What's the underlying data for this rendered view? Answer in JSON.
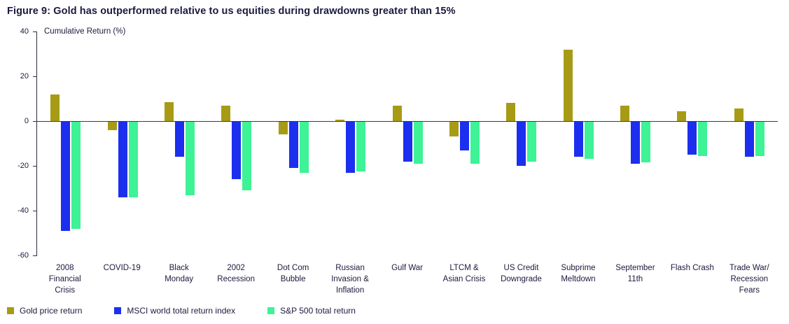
{
  "title": "Figure 9: Gold has outperformed relative to us equities during drawdowns greater than 15%",
  "chart_data": {
    "type": "bar",
    "title": "Figure 9: Gold has outperformed relative to us equities during drawdowns greater than 15%",
    "ylabel": "Cumulative Return (%)",
    "ylim": [
      -60,
      40
    ],
    "yticks": [
      40,
      20,
      0,
      -20,
      -40,
      -60
    ],
    "grid": false,
    "legend_position": "bottom-left",
    "categories": [
      "2008 Financial Crisis",
      "COVID-19",
      "Black Monday",
      "2002 Recession",
      "Dot Com Bubble",
      "Russian Invasion & Inflation",
      "Gulf War",
      "LTCM & Asian Crisis",
      "US Credit Downgrade",
      "Subprime Meltdown",
      "September 11th",
      "Flash Crash",
      "Trade War/ Recession Fears"
    ],
    "series": [
      {
        "name": "Gold price return",
        "color": "#a79b16",
        "values": [
          12,
          -4,
          8.5,
          7,
          -6,
          0.5,
          7,
          -7,
          8,
          32,
          7,
          4.5,
          5.5
        ]
      },
      {
        "name": "MSCI world total return index",
        "color": "#1c2fee",
        "values": [
          -49,
          -34,
          -16,
          -26,
          -21,
          -23,
          -18,
          -13,
          -20,
          -16,
          -19,
          -15,
          -16
        ]
      },
      {
        "name": "S&P 500 total return",
        "color": "#3ef296",
        "values": [
          -48,
          -34,
          -33,
          -31,
          -23,
          -22.5,
          -19,
          -19,
          -18,
          -17,
          -18.5,
          -15.5,
          -15.5
        ]
      }
    ]
  }
}
